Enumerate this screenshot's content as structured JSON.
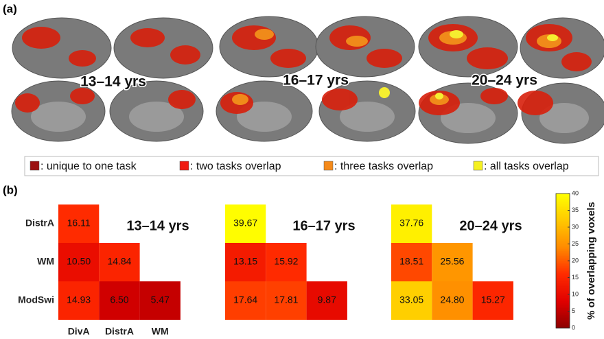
{
  "panel_a": {
    "label": "(a)",
    "ages": [
      "13–14 yrs",
      "16–17 yrs",
      "20–24 yrs"
    ],
    "legend": [
      {
        "label": ": unique to one task",
        "color": "#9b1010"
      },
      {
        "label": ": two tasks overlap",
        "color": "#f01a10"
      },
      {
        "label": ": three tasks overlap",
        "color": "#f58a1a"
      },
      {
        "label": ": all tasks overlap",
        "color": "#f5f020"
      }
    ]
  },
  "panel_b": {
    "label": "(b)"
  },
  "colorbar": {
    "label": "% of overlapping voxels",
    "lim": [
      0,
      40
    ],
    "ticks": [
      0,
      5,
      10,
      15,
      20,
      25,
      30,
      35,
      40
    ],
    "colormap": [
      "#8c0000",
      "#e00000",
      "#ff2a00",
      "#ff8a00",
      "#ffc800",
      "#ffff00"
    ]
  },
  "chart_data": [
    {
      "type": "heatmap",
      "title": "13–14 yrs",
      "rows": [
        "DistrA",
        "WM",
        "ModSwi"
      ],
      "columns": [
        "DivA",
        "DistrA",
        "WM"
      ],
      "values": [
        [
          16.11,
          null,
          null
        ],
        [
          10.5,
          14.84,
          null
        ],
        [
          14.93,
          6.5,
          5.47
        ]
      ],
      "value_labels": [
        [
          "16.11",
          null,
          null
        ],
        [
          "10.50",
          "14.84",
          null
        ],
        [
          "14.93",
          "6.50",
          "5.47"
        ]
      ]
    },
    {
      "type": "heatmap",
      "title": "16–17 yrs",
      "values": [
        [
          39.67,
          null,
          null
        ],
        [
          13.15,
          15.92,
          null
        ],
        [
          17.64,
          17.81,
          9.87
        ]
      ],
      "value_labels": [
        [
          "39.67",
          null,
          null
        ],
        [
          "13.15",
          "15.92",
          null
        ],
        [
          "17.64",
          "17.81",
          "9.87"
        ]
      ]
    },
    {
      "type": "heatmap",
      "title": "20–24 yrs",
      "values": [
        [
          37.76,
          null,
          null
        ],
        [
          18.51,
          25.56,
          null
        ],
        [
          33.05,
          24.8,
          15.27
        ]
      ],
      "value_labels": [
        [
          "37.76",
          null,
          null
        ],
        [
          "18.51",
          "25.56",
          null
        ],
        [
          "33.05",
          "24.80",
          "15.27"
        ]
      ]
    }
  ]
}
